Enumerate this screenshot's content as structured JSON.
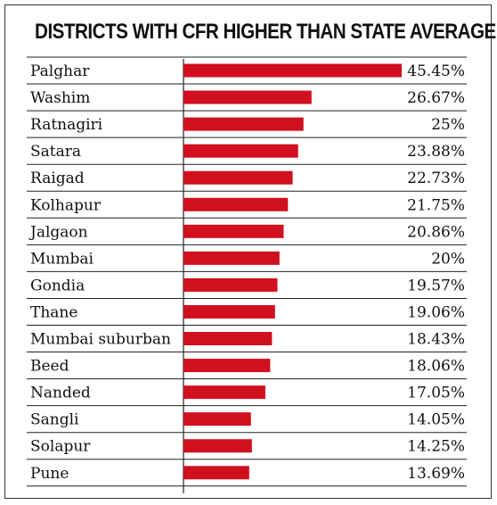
{
  "chart_data": {
    "type": "bar",
    "orientation": "horizontal",
    "title": "DISTRICTS WITH CFR HIGHER THAN STATE AVERAGE",
    "categories": [
      "Palghar",
      "Washim",
      "Ratnagiri",
      "Satara",
      "Raigad",
      "Kolhapur",
      "Jalgaon",
      "Mumbai",
      "Gondia",
      "Thane",
      "Mumbai suburban",
      "Beed",
      "Nanded",
      "Sangli",
      "Solapur",
      "Pune"
    ],
    "values": [
      45.45,
      26.67,
      25,
      23.88,
      22.73,
      21.75,
      20.86,
      20,
      19.57,
      19.06,
      18.43,
      18.06,
      17.05,
      14.05,
      14.25,
      13.69
    ],
    "value_labels": [
      "45.45%",
      "26.67%",
      "25%",
      "23.88%",
      "22.73%",
      "21.75%",
      "20.86%",
      "20%",
      "19.57%",
      "19.06%",
      "18.43%",
      "18.06%",
      "17.05%",
      "14.05%",
      "14.25%",
      "13.69%"
    ],
    "xlabel": "",
    "ylabel": "",
    "xlim": [
      0,
      45.45
    ],
    "grid": false,
    "legend": "none",
    "bar_color": "#d0101e",
    "row_divider_color": "#222222"
  }
}
